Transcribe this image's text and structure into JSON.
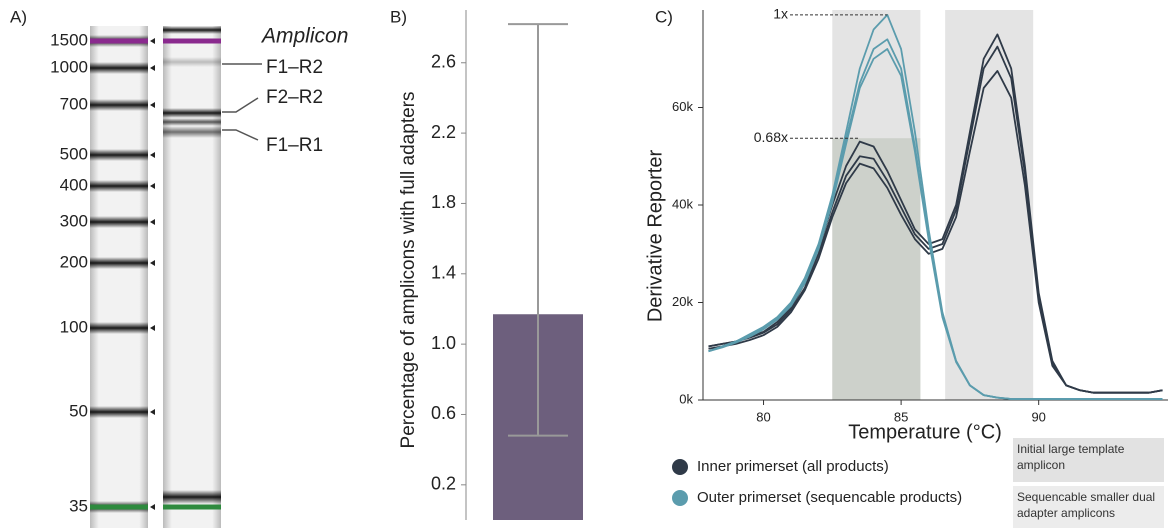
{
  "chart_data": [
    {
      "type": "gel",
      "panel_label": "A)",
      "lane_title": "Amplicon",
      "ladder": [
        1500,
        1000,
        700,
        500,
        400,
        300,
        200,
        100,
        50,
        35
      ],
      "amplicons": [
        "F1–R2",
        "F2–R2",
        "F1–R1"
      ]
    },
    {
      "type": "bar",
      "panel_label": "B)",
      "ylabel": "Percentage of amplicons with full adapters",
      "values": [
        1.17
      ],
      "error_range": [
        0.48,
        2.82
      ],
      "color": "#6d5f7d",
      "ylim": [
        0,
        2.9
      ],
      "yticks": [
        0.2,
        0.6,
        {
          "value": 1,
          "label": "1.0"
        },
        1.4,
        1.8,
        2.2,
        2.6
      ]
    },
    {
      "type": "line",
      "panel_label": "C)",
      "xlabel": "Temperature (°C)",
      "ylabel": "Derivative Reporter",
      "xlim": [
        77.8,
        94.7
      ],
      "ylim": [
        0,
        80000
      ],
      "xticks": [
        80,
        85,
        90
      ],
      "yticks": [
        {
          "value": 0,
          "label": "0k"
        },
        {
          "value": 20000,
          "label": "20k"
        },
        {
          "value": 40000,
          "label": "40k"
        },
        {
          "value": 60000,
          "label": "60k"
        }
      ],
      "x": [
        78,
        78.5,
        79,
        79.5,
        80,
        80.5,
        81,
        81.5,
        82,
        82.5,
        83,
        83.5,
        84,
        84.5,
        85,
        85.5,
        86,
        86.5,
        87,
        87.5,
        88,
        88.5,
        89,
        89.5,
        90,
        90.5,
        91,
        91.5,
        92,
        92.5,
        93,
        93.5,
        94,
        94.5
      ],
      "series": [
        {
          "name": "Inner primerset (all products)",
          "color": "#2f3a48",
          "curves": [
            [
              11000,
              11500,
              12000,
              13000,
              14000,
              16000,
              19000,
              24000,
              31000,
              40000,
              48000,
              53000,
              52000,
              47000,
              41000,
              35000,
              32000,
              33000,
              40000,
              55000,
              70000,
              75000,
              68000,
              48000,
              22000,
              8000,
              3000,
              2000,
              1500,
              1500,
              1500,
              1500,
              1500,
              2000
            ],
            [
              11000,
              11500,
              12000,
              12800,
              13800,
              15500,
              18500,
              23000,
              30000,
              38500,
              46000,
              50000,
              49500,
              45000,
              39500,
              34000,
              31000,
              32000,
              39000,
              53500,
              68000,
              72500,
              66000,
              46500,
              21000,
              7500,
              3000,
              2000,
              1500,
              1500,
              1500,
              1500,
              1500,
              2000
            ],
            [
              10500,
              11000,
              11500,
              12300,
              13300,
              15000,
              18000,
              22500,
              29000,
              37500,
              44500,
              48500,
              47500,
              43500,
              38000,
              33000,
              30000,
              31000,
              37500,
              51000,
              64000,
              67500,
              62000,
              44000,
              20000,
              7000,
              3000,
              2000,
              1500,
              1500,
              1500,
              1500,
              1500,
              2000
            ]
          ]
        },
        {
          "name": "Outer primerset (sequencable products)",
          "color": "#5b9cad",
          "curves": [
            [
              10000,
              11000,
              12000,
              13500,
              15000,
              17000,
              20000,
              25000,
              32000,
              42000,
              55000,
              68000,
              76000,
              79000,
              72000,
              55000,
              35000,
              18000,
              8000,
              3000,
              1000,
              500,
              200,
              200,
              200,
              200,
              200,
              200,
              200,
              200,
              200,
              200,
              200,
              200
            ],
            [
              10000,
              11000,
              12000,
              13300,
              14800,
              16800,
              19700,
              24500,
              31500,
              41000,
              53500,
              65000,
              72000,
              74000,
              68000,
              52000,
              33500,
              17500,
              8000,
              3000,
              1000,
              500,
              200,
              200,
              200,
              200,
              200,
              200,
              200,
              200,
              200,
              200,
              200,
              200
            ],
            [
              10000,
              10800,
              11800,
              13000,
              14500,
              16500,
              19300,
              24000,
              31000,
              40500,
              52500,
              64000,
              70000,
              72000,
              66500,
              51000,
              33000,
              17000,
              7800,
              3000,
              1000,
              500,
              200,
              200,
              200,
              200,
              200,
              200,
              200,
              200,
              200,
              200,
              200,
              200
            ]
          ]
        }
      ],
      "annotations": [
        {
          "text": "1x",
          "x": 84.5,
          "y": 79000
        },
        {
          "text": "0.68x",
          "x": 83.5,
          "y": 53700
        }
      ],
      "regions": [
        {
          "label": "Initial large template amplicon",
          "xrange": [
            86.6,
            89.8
          ]
        },
        {
          "label": "Sequencable smaller dual adapter amplicons",
          "xrange": [
            82.5,
            85.7
          ]
        }
      ]
    }
  ]
}
